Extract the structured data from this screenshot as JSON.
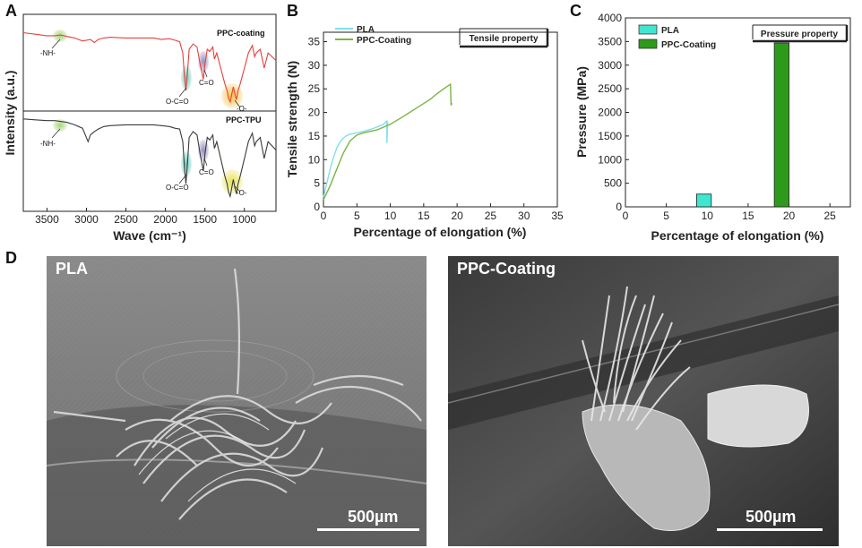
{
  "panels": {
    "A": "A",
    "B": "B",
    "C": "C",
    "D": "D"
  },
  "chart_data": [
    {
      "type": "line",
      "panel": "A",
      "xlabel": "Wave (cm⁻¹)",
      "ylabel": "Intensity (a.u.)",
      "xlim": [
        3800,
        600
      ],
      "xticks": [
        "3500",
        "3000",
        "2500",
        "2000",
        "1500",
        "1000"
      ],
      "series": [
        {
          "name": "PPC-coating",
          "color": "#e8403a",
          "x": [
            3800,
            3650,
            3500,
            3400,
            3330,
            3250,
            3150,
            3050,
            2950,
            2900,
            2850,
            2780,
            2700,
            2500,
            2300,
            2150,
            2050,
            1950,
            1880,
            1820,
            1780,
            1760,
            1740,
            1720,
            1700,
            1650,
            1600,
            1560,
            1540,
            1520,
            1500,
            1470,
            1440,
            1400,
            1380,
            1350,
            1300,
            1250,
            1220,
            1200,
            1180,
            1160,
            1140,
            1120,
            1100,
            1080,
            1050,
            1000,
            950,
            900,
            870,
            850,
            800,
            750,
            700,
            650,
            600
          ],
          "y": [
            0.97,
            0.95,
            0.93,
            0.93,
            0.94,
            0.92,
            0.9,
            0.86,
            0.88,
            0.84,
            0.88,
            0.9,
            0.91,
            0.9,
            0.9,
            0.9,
            0.88,
            0.89,
            0.87,
            0.85,
            0.7,
            0.4,
            0.2,
            0.45,
            0.75,
            0.82,
            0.78,
            0.55,
            0.45,
            0.35,
            0.55,
            0.75,
            0.72,
            0.78,
            0.62,
            0.7,
            0.5,
            0.3,
            0.2,
            0.1,
            0.05,
            0.15,
            0.25,
            0.15,
            0.08,
            0.2,
            0.3,
            0.5,
            0.7,
            0.8,
            0.65,
            0.7,
            0.75,
            0.5,
            0.7,
            0.65,
            0.6
          ]
        },
        {
          "name": "PPC-TPU",
          "color": "#3a3a3a",
          "x": [
            3800,
            3650,
            3500,
            3400,
            3330,
            3250,
            3150,
            3050,
            2980,
            2950,
            2900,
            2850,
            2780,
            2700,
            2500,
            2300,
            2150,
            2050,
            1950,
            1880,
            1820,
            1780,
            1760,
            1740,
            1720,
            1700,
            1650,
            1600,
            1560,
            1540,
            1520,
            1500,
            1470,
            1440,
            1400,
            1380,
            1350,
            1300,
            1250,
            1220,
            1200,
            1180,
            1160,
            1140,
            1120,
            1100,
            1080,
            1050,
            1000,
            950,
            900,
            870,
            850,
            800,
            750,
            700,
            650,
            600
          ],
          "y": [
            0.97,
            0.96,
            0.95,
            0.95,
            0.94,
            0.93,
            0.9,
            0.86,
            0.7,
            0.78,
            0.82,
            0.85,
            0.88,
            0.89,
            0.9,
            0.9,
            0.9,
            0.89,
            0.88,
            0.86,
            0.85,
            0.7,
            0.4,
            0.2,
            0.45,
            0.75,
            0.82,
            0.78,
            0.55,
            0.45,
            0.35,
            0.55,
            0.75,
            0.72,
            0.78,
            0.62,
            0.7,
            0.5,
            0.3,
            0.2,
            0.1,
            0.05,
            0.15,
            0.25,
            0.15,
            0.08,
            0.2,
            0.3,
            0.5,
            0.7,
            0.8,
            0.65,
            0.7,
            0.75,
            0.5,
            0.7,
            0.65,
            0.6
          ]
        }
      ],
      "annotations": [
        "-NH-",
        "O-C=O",
        "C=O",
        "-O-"
      ]
    },
    {
      "type": "line",
      "panel": "B",
      "xlabel": "Percentage of elongation (%)",
      "ylabel": "Tensile strength (N)",
      "xlim": [
        0,
        35
      ],
      "ylim": [
        0,
        37
      ],
      "xticks": [
        "0",
        "5",
        "10",
        "15",
        "20",
        "25",
        "30",
        "35"
      ],
      "yticks": [
        "0",
        "5",
        "10",
        "15",
        "20",
        "25",
        "30",
        "35"
      ],
      "legend_position": "top-left",
      "box_label": "Tensile property",
      "series": [
        {
          "name": "PLA",
          "color": "#7fe0e8",
          "x": [
            0,
            0.5,
            1,
            1.5,
            2,
            2.5,
            3,
            3.5,
            4,
            5,
            6,
            7,
            8,
            9,
            9.5,
            9.5,
            9.6
          ],
          "y": [
            2,
            5,
            8,
            10.5,
            12.5,
            13.8,
            14.6,
            15.1,
            15.4,
            15.7,
            16.0,
            16.4,
            16.9,
            17.5,
            18.2,
            13.5,
            18.0
          ]
        },
        {
          "name": "PPC-Coating",
          "color": "#7cb342",
          "x": [
            0,
            1,
            2,
            3,
            4,
            5,
            6,
            8,
            10,
            12,
            14,
            16,
            17,
            18,
            19,
            19.1,
            19.2
          ],
          "y": [
            1.5,
            4.5,
            8,
            11.5,
            14,
            15.2,
            15.7,
            16.3,
            17.5,
            19.2,
            21.0,
            22.8,
            24.0,
            25.0,
            26.0,
            21.5,
            22.0
          ]
        }
      ]
    },
    {
      "type": "bar",
      "panel": "C",
      "xlabel": "Percentage of elongation (%)",
      "ylabel": "Pressure (MPa)",
      "xlim": [
        0,
        27.5
      ],
      "ylim": [
        0,
        4000
      ],
      "xticks": [
        "0",
        "5",
        "10",
        "15",
        "20",
        "25"
      ],
      "yticks": [
        "0",
        "500",
        "1000",
        "1500",
        "2000",
        "2500",
        "3000",
        "3500",
        "4000"
      ],
      "legend_position": "top-left",
      "box_label": "Pressure property",
      "bar_width": 1.8,
      "series": [
        {
          "name": "PLA",
          "color": "#3fe6d0",
          "x": [
            9.6
          ],
          "values": [
            270
          ]
        },
        {
          "name": "PPC-Coating",
          "color": "#2e9a1c",
          "x": [
            19.1
          ],
          "values": [
            3470
          ]
        }
      ]
    }
  ],
  "sem": {
    "left_label": "PLA",
    "right_label": "PPC-Coating",
    "scale_left": "500µm",
    "scale_right": "500µm"
  },
  "a_labels": {
    "top_trace": "PPC-coating",
    "bottom_trace": "PPC-TPU"
  }
}
